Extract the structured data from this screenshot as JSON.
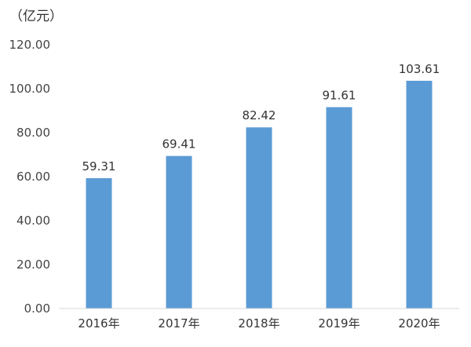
{
  "chart_data": {
    "type": "bar",
    "unit_label": "（亿元）",
    "categories": [
      "2016年",
      "2017年",
      "2018年",
      "2019年",
      "2020年"
    ],
    "values": [
      59.31,
      69.41,
      82.42,
      91.61,
      103.61
    ],
    "data_labels": [
      "59.31",
      "69.41",
      "82.42",
      "91.61",
      "103.61"
    ],
    "y_ticks": [
      "0.00",
      "20.00",
      "40.00",
      "60.00",
      "80.00",
      "100.00",
      "120.00"
    ],
    "ylim": [
      0,
      120
    ],
    "grid": false,
    "legend": "none",
    "bar_color": "#5B9BD5",
    "axis_color": "#D9D9D9"
  }
}
